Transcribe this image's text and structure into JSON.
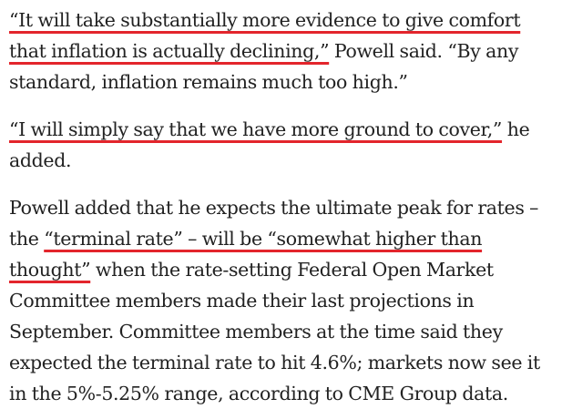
{
  "paragraphs": [
    {
      "segments": [
        {
          "text": "“It will take substantially more evidence to give comfort that inflation is actually declining,”",
          "highlighted": true
        },
        {
          "text": " Powell said. “By any standard, inflation remains much too high.”",
          "highlighted": false
        }
      ]
    },
    {
      "segments": [
        {
          "text": "“I will simply say that we have more ground to cover,”",
          "highlighted": true
        },
        {
          "text": " he added.",
          "highlighted": false
        }
      ]
    },
    {
      "segments": [
        {
          "text": "Powell added that he expects the ultimate peak for rates – the ",
          "highlighted": false
        },
        {
          "text": "“terminal rate” – will be “somewhat higher than thought”",
          "highlighted": true
        },
        {
          "text": " when the rate-setting Federal Open Market Committee members made their last projections in September. Committee members at the time said they expected the terminal rate to hit 4.6%; markets now see it in the 5%-5.25% range, according to CME Group data.",
          "highlighted": false
        }
      ]
    }
  ],
  "colors": {
    "text": "#222222",
    "highlight_underline": "#e3252c",
    "background": "#ffffff"
  }
}
